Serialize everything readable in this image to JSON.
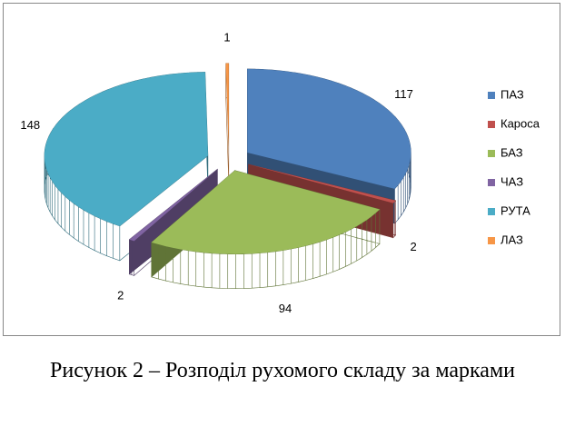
{
  "chart_data": {
    "type": "pie3d",
    "categories": [
      "ПАЗ",
      "Кароса",
      "БАЗ",
      "ЧАЗ",
      "РУТА",
      "ЛАЗ"
    ],
    "values": [
      117,
      2,
      94,
      2,
      148,
      1
    ],
    "colors": [
      "#4f81bd",
      "#c0504d",
      "#9bbb59",
      "#8064a2",
      "#4bacc6",
      "#f79646"
    ],
    "legend": "right"
  },
  "caption": "Рисунок 2 – Розподіл рухомого складу за марками"
}
